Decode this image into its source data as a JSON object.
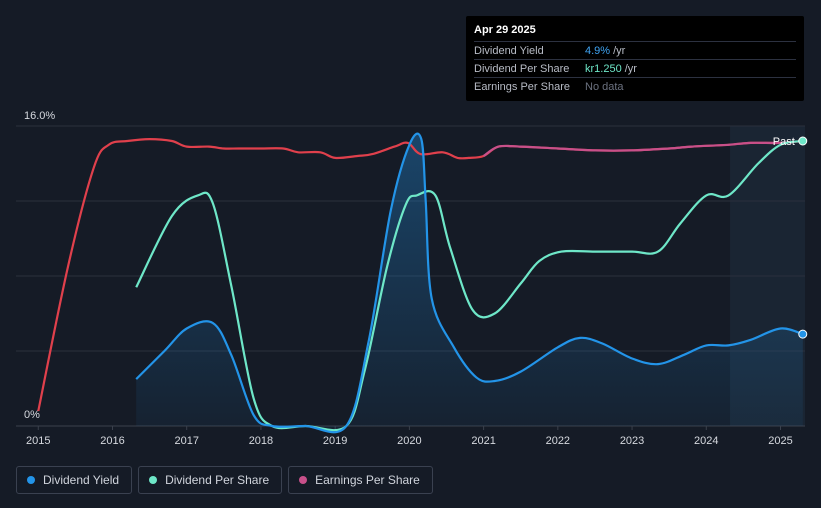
{
  "tooltip": {
    "date": "Apr 29 2025",
    "rows": [
      {
        "label": "Dividend Yield",
        "value": "4.9%",
        "unit": "/yr"
      },
      {
        "label": "Dividend Per Share",
        "value": "kr1.250",
        "unit": "/yr"
      },
      {
        "label": "Earnings Per Share",
        "value": "No data",
        "unit": ""
      }
    ]
  },
  "legend": [
    {
      "label": "Dividend Yield",
      "color": "#2394e8"
    },
    {
      "label": "Dividend Per Share",
      "color": "#6ee7c8"
    },
    {
      "label": "Earnings Per Share",
      "color": "#c8508a"
    }
  ],
  "past_label": "Past",
  "chart_data": {
    "type": "line",
    "y_top_label": "16.0%",
    "y_bottom_label": "0%",
    "ylim": [
      0,
      16
    ],
    "xlim": [
      2014.7,
      2025.33
    ],
    "x_ticks": [
      "2015",
      "2016",
      "2017",
      "2018",
      "2019",
      "2020",
      "2021",
      "2022",
      "2023",
      "2024",
      "2025"
    ],
    "forecast_start": 2024.32,
    "grid": true,
    "series": [
      {
        "name": "Earnings Per Share",
        "color": "#e0404c",
        "color_alt": "#c8508a",
        "points": [
          [
            2015.0,
            0.8
          ],
          [
            2015.4,
            8.5
          ],
          [
            2015.75,
            13.8
          ],
          [
            2015.95,
            15.0
          ],
          [
            2016.2,
            15.2
          ],
          [
            2016.5,
            15.3
          ],
          [
            2016.8,
            15.2
          ],
          [
            2017.0,
            14.9
          ],
          [
            2017.3,
            14.9
          ],
          [
            2017.5,
            14.8
          ],
          [
            2017.7,
            14.8
          ],
          [
            2018.0,
            14.8
          ],
          [
            2018.3,
            14.8
          ],
          [
            2018.5,
            14.6
          ],
          [
            2018.8,
            14.6
          ],
          [
            2019.0,
            14.3
          ],
          [
            2019.3,
            14.4
          ],
          [
            2019.5,
            14.5
          ],
          [
            2019.8,
            14.9
          ],
          [
            2019.98,
            15.1
          ],
          [
            2020.15,
            14.5
          ],
          [
            2020.45,
            14.6
          ],
          [
            2020.65,
            14.3
          ],
          [
            2020.8,
            14.3
          ],
          [
            2021.0,
            14.4
          ],
          [
            2021.2,
            14.9
          ],
          [
            2021.5,
            14.9
          ],
          [
            2022.0,
            14.8
          ],
          [
            2022.5,
            14.7
          ],
          [
            2023.0,
            14.7
          ],
          [
            2023.5,
            14.8
          ],
          [
            2023.8,
            14.9
          ],
          [
            2024.3,
            15.0
          ],
          [
            2024.6,
            15.1
          ],
          [
            2025.0,
            15.1
          ],
          [
            2025.3,
            15.2
          ]
        ]
      },
      {
        "name": "Dividend Per Share",
        "color": "#6ee7c8",
        "points": [
          [
            2016.32,
            7.4
          ],
          [
            2016.8,
            11.2
          ],
          [
            2017.15,
            12.3
          ],
          [
            2017.35,
            11.9
          ],
          [
            2017.6,
            7.5
          ],
          [
            2017.9,
            1.5
          ],
          [
            2018.15,
            0
          ],
          [
            2018.6,
            0
          ],
          [
            2019.15,
            0
          ],
          [
            2019.4,
            3.0
          ],
          [
            2019.7,
            8.5
          ],
          [
            2019.95,
            11.8
          ],
          [
            2020.1,
            12.3
          ],
          [
            2020.35,
            12.3
          ],
          [
            2020.55,
            9.5
          ],
          [
            2020.85,
            6.2
          ],
          [
            2021.15,
            6.0
          ],
          [
            2021.5,
            7.6
          ],
          [
            2021.75,
            8.8
          ],
          [
            2022.05,
            9.3
          ],
          [
            2022.5,
            9.3
          ],
          [
            2023.0,
            9.3
          ],
          [
            2023.35,
            9.3
          ],
          [
            2023.65,
            10.8
          ],
          [
            2024.0,
            12.3
          ],
          [
            2024.3,
            12.3
          ],
          [
            2024.7,
            14.0
          ],
          [
            2025.0,
            15.0
          ],
          [
            2025.3,
            15.2
          ]
        ]
      },
      {
        "name": "Dividend Yield",
        "color": "#2394e8",
        "points": [
          [
            2016.32,
            2.5
          ],
          [
            2016.7,
            4.0
          ],
          [
            2017.0,
            5.2
          ],
          [
            2017.35,
            5.5
          ],
          [
            2017.6,
            3.8
          ],
          [
            2017.9,
            0.6
          ],
          [
            2018.15,
            0
          ],
          [
            2018.6,
            0
          ],
          [
            2019.15,
            0
          ],
          [
            2019.45,
            4.5
          ],
          [
            2019.75,
            11.5
          ],
          [
            2020.0,
            15.0
          ],
          [
            2020.16,
            15.3
          ],
          [
            2020.22,
            12.0
          ],
          [
            2020.3,
            6.8
          ],
          [
            2020.6,
            4.2
          ],
          [
            2020.9,
            2.6
          ],
          [
            2021.15,
            2.4
          ],
          [
            2021.5,
            2.9
          ],
          [
            2022.0,
            4.2
          ],
          [
            2022.3,
            4.7
          ],
          [
            2022.6,
            4.4
          ],
          [
            2023.0,
            3.6
          ],
          [
            2023.35,
            3.3
          ],
          [
            2023.7,
            3.8
          ],
          [
            2024.0,
            4.3
          ],
          [
            2024.3,
            4.3
          ],
          [
            2024.6,
            4.6
          ],
          [
            2025.0,
            5.2
          ],
          [
            2025.3,
            4.9
          ]
        ]
      }
    ]
  }
}
